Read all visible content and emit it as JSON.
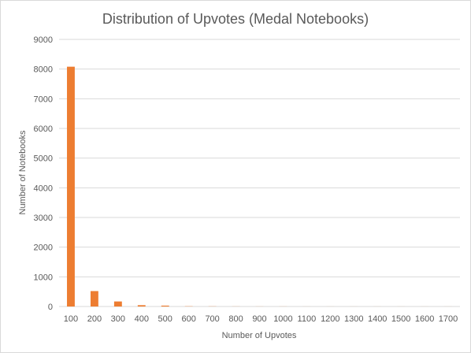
{
  "chart_data": {
    "type": "bar",
    "title": "Distribution of Upvotes (Medal Notebooks)",
    "xlabel": "Number  of Upvotes",
    "ylabel": "Number  of Notebooks",
    "categories": [
      "100",
      "200",
      "300",
      "400",
      "500",
      "600",
      "700",
      "800",
      "900",
      "1000",
      "1100",
      "1200",
      "1300",
      "1400",
      "1500",
      "1600",
      "1700"
    ],
    "series": [
      {
        "values": [
          8080,
          520,
          170,
          45,
          30,
          8,
          5,
          3,
          2,
          2,
          1,
          1,
          1,
          1,
          1,
          1,
          1
        ]
      }
    ],
    "ylim": [
      0,
      9000
    ],
    "yticks": [
      0,
      1000,
      2000,
      3000,
      4000,
      5000,
      6000,
      7000,
      8000,
      9000
    ],
    "grid": true,
    "legend": "none",
    "colors": {
      "bar": "#ED7D31",
      "grid": "#D9D9D9",
      "text": "#595959"
    }
  }
}
